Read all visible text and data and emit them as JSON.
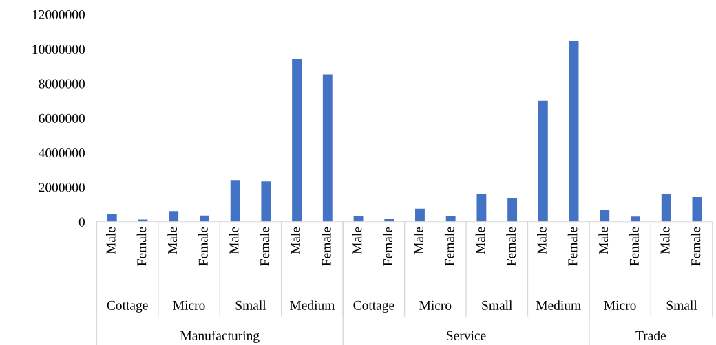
{
  "chart_data": {
    "type": "bar",
    "categories": [
      "Male",
      "Female",
      "Male",
      "Female",
      "Male",
      "Female",
      "Male",
      "Female",
      "Male",
      "Female",
      "Male",
      "Female",
      "Male",
      "Female",
      "Male",
      "Female",
      "Male",
      "Female",
      "Male",
      "Female"
    ],
    "values": [
      460000,
      130000,
      620000,
      360000,
      2410000,
      2330000,
      9420000,
      8520000,
      350000,
      190000,
      760000,
      350000,
      1580000,
      1380000,
      7000000,
      10450000,
      690000,
      300000,
      1590000,
      1450000
    ],
    "color": "#4472c4",
    "annotations": [
      "Cottage",
      "Micro",
      "Small",
      "Medium",
      "Cottage",
      "Micro",
      "Small",
      "Medium",
      "Micro",
      "Small",
      "Manufacturing",
      "Service",
      "Trade"
    ],
    "ylim": [
      0,
      12000000
    ],
    "yticks": [
      0,
      2000000,
      4000000,
      6000000,
      8000000,
      10000000,
      12000000
    ],
    "grid": false
  }
}
